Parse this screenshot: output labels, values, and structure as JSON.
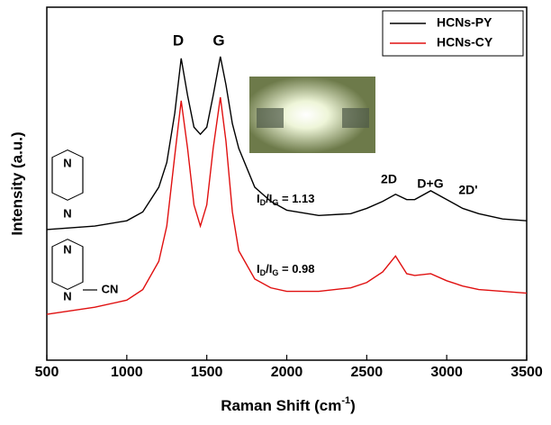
{
  "chart_data": {
    "type": "line",
    "xlabel": {
      "text": "Raman Shift (cm",
      "sup": "-1",
      "tail": ")"
    },
    "ylabel": "Intensity (a.u.)",
    "x": [
      500,
      800,
      1000,
      1100,
      1200,
      1250,
      1300,
      1340,
      1380,
      1420,
      1460,
      1500,
      1540,
      1585,
      1620,
      1660,
      1700,
      1800,
      1900,
      2000,
      2200,
      2400,
      2500,
      2600,
      2680,
      2750,
      2800,
      2900,
      3000,
      3100,
      3200,
      3350,
      3500
    ],
    "series": [
      {
        "name": "HCNs-PY",
        "color": "#000000",
        "values": [
          37,
          38,
          39.5,
          42,
          49,
          56,
          70,
          85.5,
          75,
          66,
          64,
          66,
          75,
          86,
          78,
          67,
          60,
          49,
          45,
          42.5,
          41,
          41.5,
          43,
          45,
          47,
          45.5,
          45.5,
          48,
          45.5,
          43,
          41.5,
          40,
          39.5
        ]
      },
      {
        "name": "HCNs-CY",
        "color": "#e01010",
        "values": [
          13,
          15,
          17,
          20,
          28,
          38,
          58,
          73.5,
          60,
          44,
          38,
          44,
          60,
          74.5,
          62,
          42,
          31,
          23,
          20.5,
          19.5,
          19.5,
          20.5,
          22,
          25,
          29.5,
          24.5,
          24,
          24.5,
          22.5,
          21,
          20,
          19.5,
          19
        ]
      }
    ],
    "xlim": [
      500,
      3500
    ],
    "ylim": [
      0,
      100
    ],
    "xticks": [
      500,
      1000,
      1500,
      2000,
      2500,
      3000,
      3500
    ],
    "legend": "upper right",
    "peak_labels": [
      "D",
      "G",
      "2D",
      "D+G",
      "2D'"
    ],
    "ratios": [
      [
        "I",
        "D",
        "/I",
        "G",
        " = 1.13"
      ],
      [
        "I",
        "D",
        "/I",
        "G",
        " = 0.98"
      ]
    ],
    "molecules": [
      [
        "N",
        "N"
      ],
      [
        "N",
        "N",
        "CN"
      ]
    ]
  }
}
